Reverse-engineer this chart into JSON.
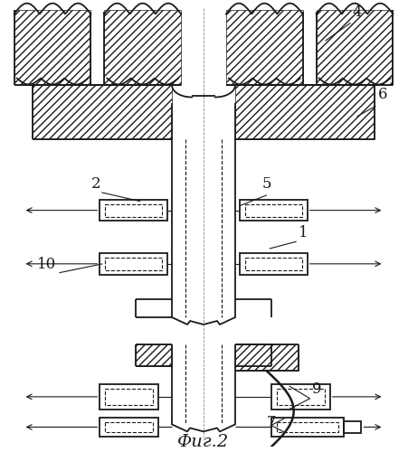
{
  "title": "Фиг.2",
  "bg_color": "#ffffff",
  "line_color": "#1a1a1a",
  "figsize": [
    4.51,
    5.0
  ],
  "dpi": 100,
  "lw": 1.3,
  "tlw": 0.8
}
